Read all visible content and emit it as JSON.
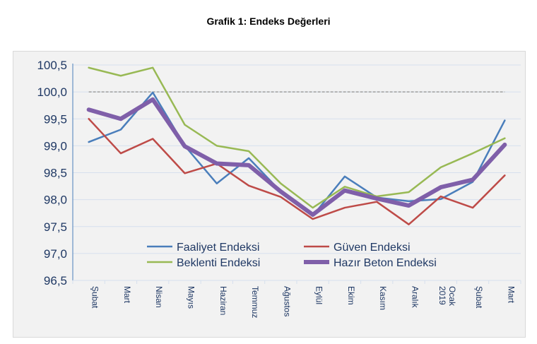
{
  "chart_data": {
    "type": "line",
    "title": "Grafik 1: Endeks Değerleri",
    "categories": [
      "Şubat",
      "Mart",
      "Nisan",
      "Mayıs",
      "Haziran",
      "Temmuz",
      "Ağustos",
      "Eylül",
      "Ekim",
      "Kasım",
      "Aralık",
      "Ocak 2019",
      "Şubat",
      "Mart"
    ],
    "ylim": [
      96.5,
      100.5
    ],
    "yticks": [
      "96,5",
      "97,0",
      "97,5",
      "98,0",
      "98,5",
      "99,0",
      "99,5",
      "100,0",
      "100,5"
    ],
    "reference_line": 100.0,
    "grid": "horizontal",
    "legend_position": "bottom-inside",
    "series": [
      {
        "name": "Faaliyet Endeksi",
        "color": "#4a7ebb",
        "values": [
          99.07,
          99.3,
          99.99,
          99.0,
          98.3,
          98.77,
          98.15,
          97.7,
          98.43,
          98.04,
          97.97,
          98.01,
          98.33,
          99.47
        ]
      },
      {
        "name": "Güven Endeksi",
        "color": "#be4b48",
        "values": [
          99.5,
          98.86,
          99.13,
          98.49,
          98.67,
          98.26,
          98.05,
          97.64,
          97.85,
          97.96,
          97.54,
          98.06,
          97.85,
          98.45
        ]
      },
      {
        "name": "Beklenti Endeksi",
        "color": "#98b954",
        "values": [
          100.45,
          100.3,
          100.45,
          99.39,
          99.0,
          98.9,
          98.3,
          97.85,
          98.24,
          98.06,
          98.14,
          98.6,
          98.86,
          99.14
        ]
      },
      {
        "name": "Hazır Beton Endeksi",
        "color": "#7f5fa9",
        "values": [
          99.67,
          99.5,
          99.86,
          98.99,
          98.67,
          98.64,
          98.15,
          97.72,
          98.17,
          98.02,
          97.89,
          98.23,
          98.37,
          99.02
        ]
      }
    ]
  }
}
